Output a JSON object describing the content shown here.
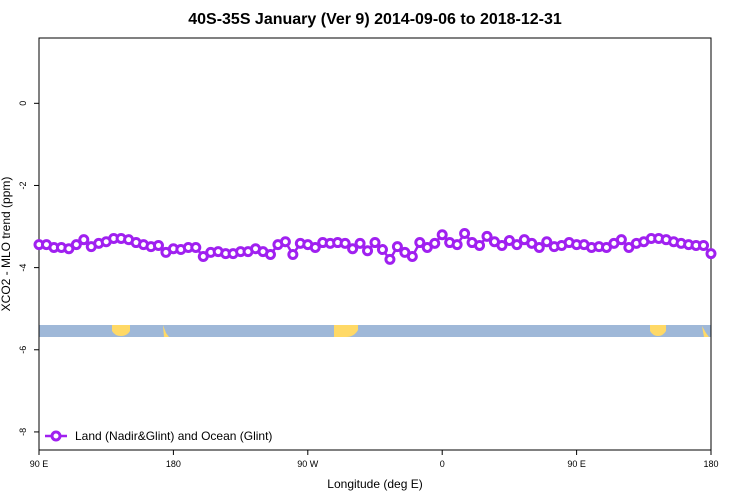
{
  "chart_data": {
    "type": "line",
    "title": "40S-35S January (Ver 9)   2014-09-06 to 2018-12-31",
    "x_label": "Longitude (deg E)",
    "y_label": "XCO2 - MLO trend (ppm)",
    "x": [
      90,
      95,
      100,
      105,
      110,
      115,
      120,
      125,
      130,
      135,
      140,
      145,
      150,
      155,
      160,
      165,
      170,
      175,
      180,
      185,
      190,
      195,
      200,
      205,
      210,
      215,
      220,
      225,
      230,
      235,
      240,
      245,
      250,
      255,
      260,
      265,
      270,
      275,
      280,
      285,
      290,
      295,
      300,
      305,
      310,
      315,
      320,
      325,
      330,
      335,
      340,
      345,
      350,
      355,
      360,
      365,
      370,
      375,
      380,
      385,
      390,
      395,
      400,
      405,
      410,
      415,
      420,
      425,
      430,
      435,
      440,
      445,
      450,
      455,
      460,
      465,
      470,
      475,
      480,
      485,
      490,
      495,
      500,
      505,
      510,
      515,
      520,
      525,
      530,
      535,
      540
    ],
    "series": [
      {
        "name": "Land (Nadir&Glint) and Ocean (Glint)",
        "color": "#a020f0",
        "values": [
          -3.44,
          -3.44,
          -3.51,
          -3.51,
          -3.54,
          -3.44,
          -3.32,
          -3.49,
          -3.41,
          -3.37,
          -3.29,
          -3.29,
          -3.32,
          -3.39,
          -3.44,
          -3.49,
          -3.46,
          -3.63,
          -3.54,
          -3.56,
          -3.51,
          -3.51,
          -3.73,
          -3.63,
          -3.61,
          -3.66,
          -3.66,
          -3.61,
          -3.61,
          -3.54,
          -3.61,
          -3.68,
          -3.44,
          -3.37,
          -3.68,
          -3.41,
          -3.44,
          -3.51,
          -3.39,
          -3.41,
          -3.39,
          -3.41,
          -3.54,
          -3.41,
          -3.59,
          -3.39,
          -3.56,
          -3.8,
          -3.49,
          -3.63,
          -3.73,
          -3.39,
          -3.51,
          -3.41,
          -3.2,
          -3.39,
          -3.44,
          -3.17,
          -3.39,
          -3.46,
          -3.24,
          -3.37,
          -3.46,
          -3.34,
          -3.44,
          -3.32,
          -3.41,
          -3.51,
          -3.37,
          -3.49,
          -3.46,
          -3.39,
          -3.44,
          -3.44,
          -3.51,
          -3.49,
          -3.51,
          -3.41,
          -3.32,
          -3.51,
          -3.41,
          -3.37,
          -3.29,
          -3.29,
          -3.32,
          -3.37,
          -3.41,
          -3.44,
          -3.46,
          -3.46,
          -3.66
        ]
      }
    ],
    "xlim": [
      90,
      540
    ],
    "xticks": [
      {
        "value": 90,
        "label": "90 E"
      },
      {
        "value": 180,
        "label": "180"
      },
      {
        "value": 270,
        "label": "90 W"
      },
      {
        "value": 360,
        "label": "0"
      },
      {
        "value": 450,
        "label": "90 E"
      },
      {
        "value": 540,
        "label": "180"
      }
    ],
    "ylim": [
      -8.44,
      1.59
    ],
    "yticks": [
      -8,
      -6,
      -4,
      -2,
      0
    ],
    "legend": "bottom-left"
  }
}
